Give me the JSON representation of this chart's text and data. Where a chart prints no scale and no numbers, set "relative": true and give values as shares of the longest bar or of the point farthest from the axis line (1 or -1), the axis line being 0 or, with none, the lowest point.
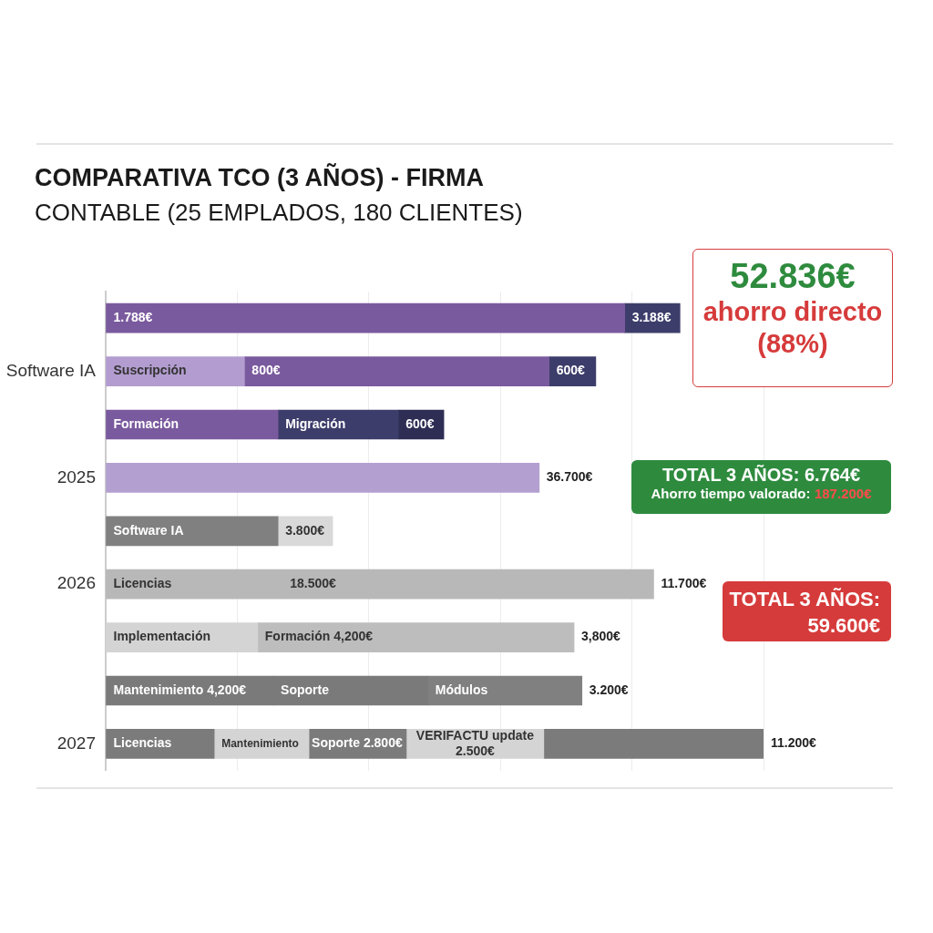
{
  "chart_data": {
    "type": "bar",
    "orientation": "horizontal",
    "stacked": true,
    "relative": true,
    "grid": "x",
    "title": "COMPARATIVA TCO (3 AÑOS) - FIRMA",
    "subtitle": "CONTABLE (25 EMPLADOS, 180 CLIENTES)",
    "categories": [
      null,
      "Software IA",
      null,
      "2025",
      null,
      "2026",
      null,
      null,
      "2027"
    ],
    "series": [
      {
        "values": [
          0.789,
          0.211,
          0.262,
          0.659,
          0.262,
          0.269,
          0.231,
          0.255,
          0.165
        ],
        "colors": [
          "#7a5a9e",
          "#b39dd0",
          "#7a5a9e",
          "#b3a0d0",
          "#808080",
          "#b8b8b8",
          "#d4d4d4",
          "#7a7a7a",
          "#7b7b7b"
        ]
      },
      {
        "values": [
          0.084,
          0.463,
          0.183,
          null,
          0.083,
          0.564,
          0.481,
          0.235,
          0.144
        ],
        "colors": [
          "#3d3d6b",
          "#7a5a9e",
          "#3d3d6b",
          null,
          "#d9d9d9",
          "#b8b8b8",
          "#bdbdbd",
          "#7a7a7a",
          "#d4d4d4"
        ]
      },
      {
        "values": [
          null,
          0.071,
          0.069,
          null,
          null,
          null,
          null,
          0.234,
          0.148
        ],
        "colors": [
          null,
          "#3d3d6b",
          "#2e2e55",
          null,
          null,
          null,
          null,
          "#808080",
          "#7b7b7b"
        ]
      },
      {
        "values": [
          null,
          null,
          null,
          null,
          null,
          null,
          null,
          null,
          0.209
        ],
        "colors": [
          null,
          null,
          null,
          null,
          null,
          null,
          null,
          null,
          "#d4d4d4"
        ]
      },
      {
        "values": [
          null,
          null,
          null,
          null,
          null,
          null,
          null,
          null,
          0.334
        ],
        "colors": [
          null,
          null,
          null,
          null,
          null,
          null,
          null,
          null,
          "#7b7b7b"
        ]
      }
    ],
    "annotations": [
      "52.836€",
      "ahorro directo (88%)",
      "TOTAL 3 AÑOS: 6.764€",
      "Ahorro tiempo valorado:",
      "187.200€",
      "TOTAL 3 AÑOS: 59.600€",
      "1.788€",
      "3.188€",
      "Suscripción",
      "800€",
      "600€",
      "Formación",
      "Migración",
      "600€",
      "36.700€",
      "Software IA",
      "3.800€",
      "Licencias",
      "18.500€",
      "11.700€",
      "Implementación",
      "Formación 4,200€",
      "3,800€",
      "Mantenimiento 4,200€",
      "Soporte",
      "Módulos",
      "3.200€",
      "Licencias",
      "Mantenimiento",
      "Soporte 2.800€",
      "VERIFACTU update 2.500€",
      "11.200€"
    ]
  }
}
